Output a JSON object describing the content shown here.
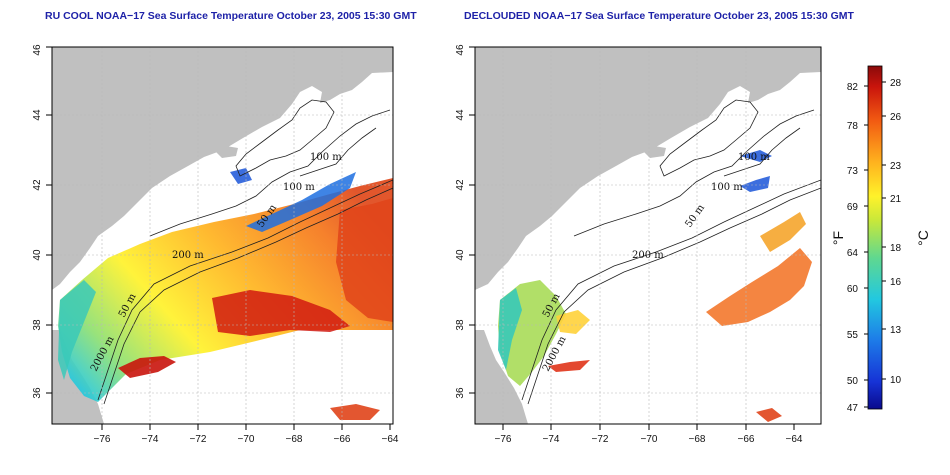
{
  "left_panel": {
    "title": "RU COOL NOAA−17 Sea Surface Temperature October 23, 2005 15:30 GMT",
    "contour_labels": [
      "100 m",
      "100 m",
      "50 m",
      "200 m",
      "50 m",
      "2000 m"
    ]
  },
  "right_panel": {
    "title": "DECLOUDED NOAA−17 Sea Surface Temperature October 23, 2005 15:30 GMT",
    "contour_labels": [
      "100 m",
      "100 m",
      "50 m",
      "200 m",
      "50 m",
      "2000 m"
    ]
  },
  "axes": {
    "x_ticks": [
      "−76",
      "−74",
      "−72",
      "−70",
      "−68",
      "−66",
      "−64"
    ],
    "y_ticks": [
      "36",
      "38",
      "40",
      "42",
      "44",
      "46"
    ]
  },
  "colorbar": {
    "fahrenheit_ticks": [
      "82",
      "78",
      "73",
      "69",
      "64",
      "60",
      "55",
      "50",
      "47"
    ],
    "celsius_ticks": [
      "28",
      "26",
      "23",
      "21",
      "18",
      "16",
      "13",
      "10"
    ],
    "fahrenheit_unit": "°F",
    "celsius_unit": "°C",
    "colors": [
      "#0a0a8c",
      "#1633d6",
      "#1d7be8",
      "#22c8e0",
      "#5fd890",
      "#c8e83a",
      "#fff22a",
      "#ffb21e",
      "#f25b12",
      "#c9140c",
      "#8a0a0a"
    ]
  },
  "colors": {
    "land": "#c0c0c0",
    "ocean": "#ffffff",
    "title": "#1e22a8",
    "grid": "#b8b8b8"
  }
}
